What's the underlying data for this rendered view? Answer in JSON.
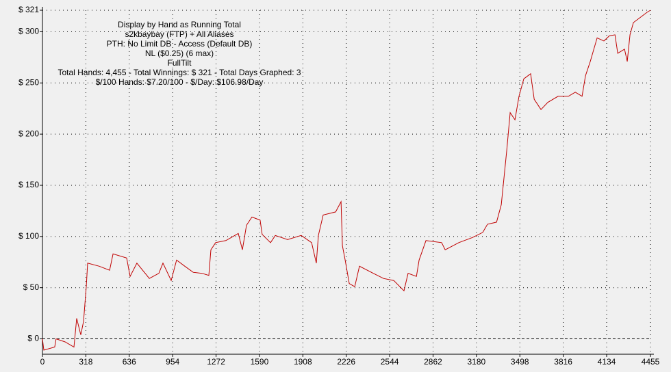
{
  "chart_data": {
    "type": "line",
    "title_lines": [
      "Display by Hand as Running Total",
      "s2kbaybay (FTP) + All Aliases",
      "PTH: No Limit DB - Access (Default DB)",
      "NL ($0.25) (6 max)",
      "FullTilt",
      "Total Hands: 4,455 - Total Winnings: $ 321 - Total Days Graphed: 3",
      "$/100 Hands: $7.20/100 - $/Day: $106.98/Day"
    ],
    "x": [
      0,
      10,
      90,
      100,
      166,
      231,
      251,
      281,
      301,
      321,
      331,
      416,
      492,
      517,
      617,
      642,
      692,
      783,
      853,
      883,
      943,
      983,
      1043,
      1104,
      1169,
      1219,
      1234,
      1269,
      1344,
      1435,
      1465,
      1495,
      1535,
      1595,
      1610,
      1671,
      1706,
      1796,
      1896,
      1972,
      2007,
      2022,
      2057,
      2148,
      2188,
      2198,
      2218,
      2248,
      2288,
      2323,
      2424,
      2499,
      2574,
      2649,
      2679,
      2740,
      2760,
      2810,
      2925,
      2951,
      3051,
      3151,
      3226,
      3261,
      3327,
      3362,
      3402,
      3427,
      3462,
      3492,
      3527,
      3577,
      3603,
      3653,
      3703,
      3778,
      3854,
      3904,
      3954,
      3979,
      4014,
      4064,
      4114,
      4154,
      4195,
      4215,
      4265,
      4285,
      4305,
      4330,
      4380,
      4430,
      4455
    ],
    "series": [
      {
        "color": "#c00000",
        "values": [
          0,
          -11,
          -8,
          0,
          -3,
          -8,
          20,
          4,
          17,
          51,
          74,
          71,
          67,
          83,
          79,
          61,
          74,
          59,
          64,
          74,
          57,
          77,
          71,
          65,
          64,
          62,
          87,
          94,
          96,
          103,
          87,
          111,
          119,
          116,
          102,
          94,
          101,
          97,
          101,
          94,
          74,
          101,
          121,
          124,
          134,
          91,
          77,
          54,
          51,
          71,
          64,
          59,
          57,
          47,
          64,
          61,
          77,
          96,
          94,
          87,
          94,
          99,
          104,
          112,
          114,
          131,
          184,
          221,
          214,
          237,
          254,
          259,
          234,
          224,
          231,
          237,
          237,
          241,
          237,
          257,
          271,
          294,
          291,
          296,
          297,
          279,
          283,
          271,
          297,
          309,
          314,
          319,
          321
        ]
      }
    ],
    "xlim": [
      0,
      4455
    ],
    "xticks": [
      0,
      318,
      636,
      954,
      1272,
      1590,
      1908,
      2226,
      2544,
      2862,
      3180,
      3498,
      3816,
      4134,
      4455
    ],
    "ylim": [
      -15,
      321
    ],
    "yticks": [
      {
        "value": 0,
        "label": "$ 0"
      },
      {
        "value": 50,
        "label": "$ 50"
      },
      {
        "value": 100,
        "label": "$ 100"
      },
      {
        "value": 150,
        "label": "$ 150"
      },
      {
        "value": 200,
        "label": "$ 200"
      },
      {
        "value": 250,
        "label": "$ 250"
      },
      {
        "value": 300,
        "label": "$ 300"
      },
      {
        "value": 321,
        "label": "$ 321"
      }
    ],
    "grid": true
  }
}
